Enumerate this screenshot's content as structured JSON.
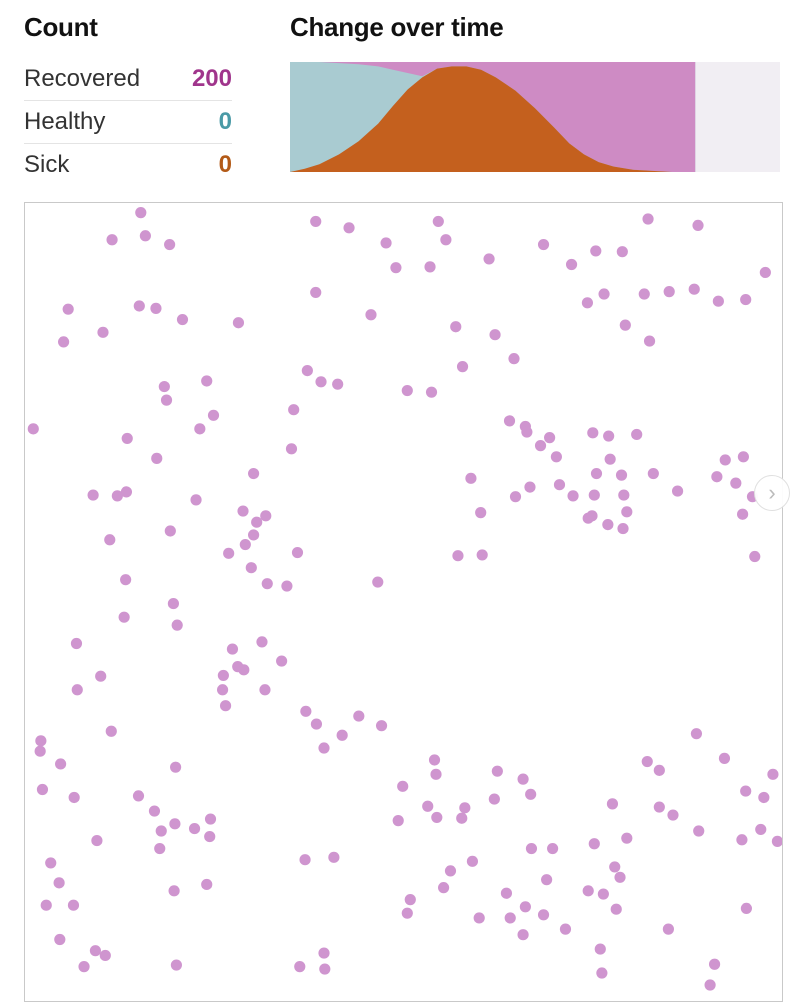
{
  "header": {
    "count_title": "Count",
    "change_title": "Change over time"
  },
  "counts": [
    {
      "label": "Recovered",
      "value": "200",
      "color": "#a0358c"
    },
    {
      "label": "Healthy",
      "value": "0",
      "color": "#4a9aa6"
    },
    {
      "label": "Sick",
      "value": "0",
      "color": "#b35a17"
    }
  ],
  "colors": {
    "healthy": "#a9cbd1",
    "sick": "#c4601e",
    "recovered": "#ce8bc4",
    "empty": "#f1eef3",
    "dot": "#cf95cf"
  },
  "navigation": {
    "next_icon": "chevron-right-icon",
    "next_glyph": "›"
  },
  "chart_data": [
    {
      "type": "area",
      "title": "Change over time",
      "x_range": [
        0,
        1
      ],
      "filled_until": 0.827,
      "series": [
        {
          "name": "Healthy",
          "color": "#a9cbd1"
        },
        {
          "name": "Sick",
          "color": "#c4601e"
        },
        {
          "name": "Recovered",
          "color": "#ce8bc4"
        }
      ],
      "points": [
        {
          "t": 0.0,
          "sick": 0.0,
          "recovered": 0.0
        },
        {
          "t": 0.03,
          "sick": 0.03,
          "recovered": 0.0
        },
        {
          "t": 0.06,
          "sick": 0.07,
          "recovered": 0.0
        },
        {
          "t": 0.1,
          "sick": 0.16,
          "recovered": 0.01
        },
        {
          "t": 0.14,
          "sick": 0.28,
          "recovered": 0.02
        },
        {
          "t": 0.18,
          "sick": 0.44,
          "recovered": 0.04
        },
        {
          "t": 0.21,
          "sick": 0.6,
          "recovered": 0.07
        },
        {
          "t": 0.24,
          "sick": 0.75,
          "recovered": 0.1
        },
        {
          "t": 0.27,
          "sick": 0.86,
          "recovered": 0.13
        },
        {
          "t": 0.3,
          "sick": 0.94,
          "recovered": 0.06
        },
        {
          "t": 0.33,
          "sick": 0.96,
          "recovered": 0.04
        },
        {
          "t": 0.36,
          "sick": 0.96,
          "recovered": 0.04
        },
        {
          "t": 0.39,
          "sick": 0.93,
          "recovered": 0.07
        },
        {
          "t": 0.42,
          "sick": 0.86,
          "recovered": 0.14
        },
        {
          "t": 0.46,
          "sick": 0.74,
          "recovered": 0.26
        },
        {
          "t": 0.5,
          "sick": 0.58,
          "recovered": 0.42
        },
        {
          "t": 0.54,
          "sick": 0.4,
          "recovered": 0.6
        },
        {
          "t": 0.57,
          "sick": 0.26,
          "recovered": 0.74
        },
        {
          "t": 0.6,
          "sick": 0.16,
          "recovered": 0.84
        },
        {
          "t": 0.63,
          "sick": 0.09,
          "recovered": 0.91
        },
        {
          "t": 0.66,
          "sick": 0.05,
          "recovered": 0.95
        },
        {
          "t": 0.7,
          "sick": 0.02,
          "recovered": 0.98
        },
        {
          "t": 0.74,
          "sick": 0.01,
          "recovered": 0.99
        },
        {
          "t": 0.78,
          "sick": 0.0,
          "recovered": 1.0
        },
        {
          "t": 0.827,
          "sick": 0.0,
          "recovered": 1.0
        }
      ]
    },
    {
      "type": "scatter",
      "xlim": [
        0,
        1
      ],
      "ylim": [
        0,
        1
      ],
      "series": [
        {
          "color": "#cf95cf",
          "points": [
            [
              0.153,
              0.012
            ],
            [
              0.115,
              0.046
            ],
            [
              0.159,
              0.041
            ],
            [
              0.191,
              0.052
            ],
            [
              0.384,
              0.023
            ],
            [
              0.428,
              0.031
            ],
            [
              0.477,
              0.05
            ],
            [
              0.546,
              0.023
            ],
            [
              0.556,
              0.046
            ],
            [
              0.535,
              0.08
            ],
            [
              0.49,
              0.081
            ],
            [
              0.613,
              0.07
            ],
            [
              0.685,
              0.052
            ],
            [
              0.722,
              0.077
            ],
            [
              0.754,
              0.06
            ],
            [
              0.789,
              0.061
            ],
            [
              0.823,
              0.02
            ],
            [
              0.889,
              0.028
            ],
            [
              0.978,
              0.087
            ],
            [
              0.952,
              0.121
            ],
            [
              0.916,
              0.123
            ],
            [
              0.851,
              0.111
            ],
            [
              0.818,
              0.114
            ],
            [
              0.765,
              0.114
            ],
            [
              0.743,
              0.125
            ],
            [
              0.793,
              0.153
            ],
            [
              0.825,
              0.173
            ],
            [
              0.884,
              0.108
            ],
            [
              0.057,
              0.133
            ],
            [
              0.051,
              0.174
            ],
            [
              0.103,
              0.162
            ],
            [
              0.151,
              0.129
            ],
            [
              0.173,
              0.132
            ],
            [
              0.208,
              0.146
            ],
            [
              0.282,
              0.15
            ],
            [
              0.384,
              0.112
            ],
            [
              0.457,
              0.14
            ],
            [
              0.569,
              0.155
            ],
            [
              0.621,
              0.165
            ],
            [
              0.646,
              0.195
            ],
            [
              0.578,
              0.205
            ],
            [
              0.537,
              0.237
            ],
            [
              0.505,
              0.235
            ],
            [
              0.413,
              0.227
            ],
            [
              0.373,
              0.21
            ],
            [
              0.355,
              0.259
            ],
            [
              0.391,
              0.224
            ],
            [
              0.24,
              0.223
            ],
            [
              0.184,
              0.23
            ],
            [
              0.135,
              0.295
            ],
            [
              0.187,
              0.247
            ],
            [
              0.249,
              0.266
            ],
            [
              0.231,
              0.283
            ],
            [
              0.302,
              0.339
            ],
            [
              0.352,
              0.308
            ],
            [
              0.64,
              0.273
            ],
            [
              0.661,
              0.28
            ],
            [
              0.681,
              0.304
            ],
            [
              0.693,
              0.294
            ],
            [
              0.702,
              0.318
            ],
            [
              0.75,
              0.288
            ],
            [
              0.771,
              0.292
            ],
            [
              0.773,
              0.321
            ],
            [
              0.755,
              0.339
            ],
            [
              0.788,
              0.341
            ],
            [
              0.791,
              0.366
            ],
            [
              0.795,
              0.387
            ],
            [
              0.749,
              0.392
            ],
            [
              0.724,
              0.367
            ],
            [
              0.706,
              0.353
            ],
            [
              0.648,
              0.368
            ],
            [
              0.667,
              0.356
            ],
            [
              0.663,
              0.287
            ],
            [
              0.808,
              0.29
            ],
            [
              0.83,
              0.339
            ],
            [
              0.862,
              0.361
            ],
            [
              0.914,
              0.343
            ],
            [
              0.939,
              0.351
            ],
            [
              0.949,
              0.318
            ],
            [
              0.925,
              0.322
            ],
            [
              0.961,
              0.368
            ],
            [
              0.948,
              0.39
            ],
            [
              0.964,
              0.443
            ],
            [
              0.79,
              0.408
            ],
            [
              0.77,
              0.403
            ],
            [
              0.744,
              0.395
            ],
            [
              0.752,
              0.366
            ],
            [
              0.589,
              0.345
            ],
            [
              0.602,
              0.388
            ],
            [
              0.604,
              0.441
            ],
            [
              0.572,
              0.442
            ],
            [
              0.466,
              0.475
            ],
            [
              0.36,
              0.438
            ],
            [
              0.346,
              0.48
            ],
            [
              0.32,
              0.477
            ],
            [
              0.299,
              0.457
            ],
            [
              0.291,
              0.428
            ],
            [
              0.269,
              0.439
            ],
            [
              0.288,
              0.386
            ],
            [
              0.318,
              0.392
            ],
            [
              0.306,
              0.4
            ],
            [
              0.302,
              0.416
            ],
            [
              0.226,
              0.372
            ],
            [
              0.192,
              0.411
            ],
            [
              0.134,
              0.362
            ],
            [
              0.174,
              0.32
            ],
            [
              0.122,
              0.367
            ],
            [
              0.09,
              0.366
            ],
            [
              0.112,
              0.422
            ],
            [
              0.133,
              0.472
            ],
            [
              0.131,
              0.519
            ],
            [
              0.196,
              0.502
            ],
            [
              0.201,
              0.529
            ],
            [
              0.068,
              0.552
            ],
            [
              0.1,
              0.593
            ],
            [
              0.069,
              0.61
            ],
            [
              0.114,
              0.662
            ],
            [
              0.02,
              0.687
            ],
            [
              0.047,
              0.703
            ],
            [
              0.023,
              0.735
            ],
            [
              0.065,
              0.745
            ],
            [
              0.15,
              0.743
            ],
            [
              0.171,
              0.762
            ],
            [
              0.198,
              0.778
            ],
            [
              0.224,
              0.784
            ],
            [
              0.245,
              0.772
            ],
            [
              0.18,
              0.787
            ],
            [
              0.199,
              0.707
            ],
            [
              0.281,
              0.581
            ],
            [
              0.317,
              0.61
            ],
            [
              0.313,
              0.55
            ],
            [
              0.274,
              0.559
            ],
            [
              0.289,
              0.585
            ],
            [
              0.339,
              0.574
            ],
            [
              0.262,
              0.592
            ],
            [
              0.265,
              0.63
            ],
            [
              0.261,
              0.61
            ],
            [
              0.395,
              0.683
            ],
            [
              0.385,
              0.653
            ],
            [
              0.419,
              0.667
            ],
            [
              0.441,
              0.643
            ],
            [
              0.371,
              0.637
            ],
            [
              0.471,
              0.655
            ],
            [
              0.499,
              0.731
            ],
            [
              0.543,
              0.716
            ],
            [
              0.624,
              0.712
            ],
            [
              0.658,
              0.722
            ],
            [
              0.668,
              0.741
            ],
            [
              0.62,
              0.747
            ],
            [
              0.541,
              0.698
            ],
            [
              0.577,
              0.771
            ],
            [
              0.544,
              0.77
            ],
            [
              0.697,
              0.809
            ],
            [
              0.752,
              0.803
            ],
            [
              0.776,
              0.753
            ],
            [
              0.795,
              0.796
            ],
            [
              0.822,
              0.7
            ],
            [
              0.838,
              0.757
            ],
            [
              0.838,
              0.711
            ],
            [
              0.887,
              0.665
            ],
            [
              0.952,
              0.737
            ],
            [
              0.972,
              0.785
            ],
            [
              0.994,
              0.8
            ],
            [
              0.976,
              0.745
            ],
            [
              0.988,
              0.716
            ],
            [
              0.924,
              0.696
            ],
            [
              0.89,
              0.787
            ],
            [
              0.856,
              0.767
            ],
            [
              0.779,
              0.832
            ],
            [
              0.744,
              0.862
            ],
            [
              0.764,
              0.866
            ],
            [
              0.786,
              0.845
            ],
            [
              0.781,
              0.885
            ],
            [
              0.689,
              0.848
            ],
            [
              0.669,
              0.809
            ],
            [
              0.685,
              0.892
            ],
            [
              0.661,
              0.882
            ],
            [
              0.636,
              0.865
            ],
            [
              0.714,
              0.91
            ],
            [
              0.591,
              0.825
            ],
            [
              0.505,
              0.89
            ],
            [
              0.493,
              0.774
            ],
            [
              0.408,
              0.82
            ],
            [
              0.532,
              0.756
            ],
            [
              0.581,
              0.758
            ],
            [
              0.553,
              0.858
            ],
            [
              0.6,
              0.896
            ],
            [
              0.641,
              0.896
            ],
            [
              0.658,
              0.917
            ],
            [
              0.76,
              0.935
            ],
            [
              0.762,
              0.965
            ],
            [
              0.85,
              0.91
            ],
            [
              0.911,
              0.954
            ],
            [
              0.905,
              0.98
            ],
            [
              0.953,
              0.884
            ],
            [
              0.947,
              0.798
            ],
            [
              0.034,
              0.827
            ],
            [
              0.045,
              0.852
            ],
            [
              0.028,
              0.88
            ],
            [
              0.064,
              0.88
            ],
            [
              0.095,
              0.799
            ],
            [
              0.046,
              0.923
            ],
            [
              0.093,
              0.937
            ],
            [
              0.078,
              0.957
            ],
            [
              0.106,
              0.943
            ],
            [
              0.2,
              0.955
            ],
            [
              0.24,
              0.854
            ],
            [
              0.178,
              0.809
            ],
            [
              0.244,
              0.794
            ],
            [
              0.197,
              0.862
            ],
            [
              0.37,
              0.823
            ],
            [
              0.395,
              0.94
            ],
            [
              0.396,
              0.96
            ],
            [
              0.363,
              0.957
            ],
            [
              0.011,
              0.283
            ],
            [
              0.021,
              0.674
            ],
            [
              0.509,
              0.873
            ],
            [
              0.562,
              0.837
            ]
          ]
        }
      ]
    }
  ]
}
